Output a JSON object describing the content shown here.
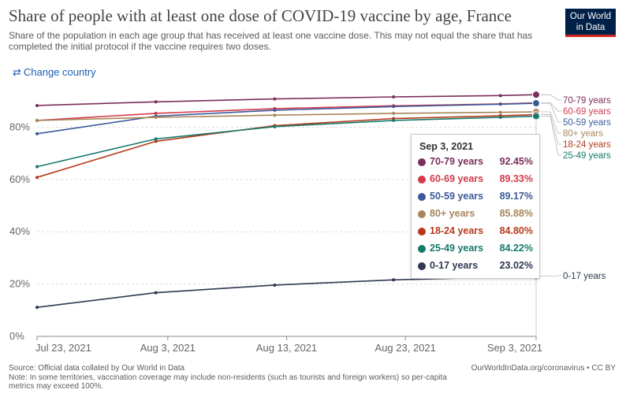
{
  "header": {
    "title": "Share of people with at least one dose of COVID-19 vaccine by age, France",
    "subtitle": "Share of the population in each age group that has received at least one vaccine dose. This may not equal the share that has completed the initial protocol if the vaccine requires two doses.",
    "logo_line1": "Our World",
    "logo_line2": "in Data"
  },
  "controls": {
    "change_country_icon": "swap-arrows-icon",
    "change_country_label": "Change country"
  },
  "colors": {
    "70-79 years": "#7a2e5a",
    "60-69 years": "#d23a4b",
    "50-59 years": "#3c5a9a",
    "80+ years": "#a8855a",
    "18-24 years": "#b53a1b",
    "25-49 years": "#167a6b",
    "0-17 years": "#2e3850",
    "grid": "#dddddd",
    "axis": "#888888",
    "accent_link": "#1a5fb4",
    "logo_bg": "#002147",
    "logo_bar": "#ce261e"
  },
  "chart_data": {
    "type": "line",
    "title": "Share of people with at least one dose of COVID-19 vaccine by age, France",
    "xlabel": "",
    "ylabel": "",
    "x_range": [
      "2021-07-23",
      "2021-09-03"
    ],
    "x_ticks": [
      {
        "date": "2021-07-23",
        "label": "Jul 23, 2021"
      },
      {
        "date": "2021-08-03",
        "label": "Aug 3, 2021"
      },
      {
        "date": "2021-08-13",
        "label": "Aug 13, 2021"
      },
      {
        "date": "2021-08-23",
        "label": "Aug 23, 2021"
      },
      {
        "date": "2021-09-03",
        "label": "Sep 3, 2021"
      }
    ],
    "ylim": [
      0,
      92.5
    ],
    "y_ticks": [
      0,
      20,
      40,
      60,
      80
    ],
    "y_tick_labels": [
      "0%",
      "20%",
      "40%",
      "60%",
      "80%"
    ],
    "grid": "horizontal dashed",
    "legend": "right end labels",
    "x": [
      "2021-07-23",
      "2021-08-02",
      "2021-08-12",
      "2021-08-22",
      "2021-08-31",
      "2021-09-03"
    ],
    "series": [
      {
        "name": "70-79 years",
        "values": [
          88.3,
          89.7,
          90.8,
          91.6,
          92.1,
          92.45
        ]
      },
      {
        "name": "60-69 years",
        "values": [
          82.6,
          85.3,
          87.1,
          88.2,
          88.9,
          89.33
        ]
      },
      {
        "name": "50-59 years",
        "values": [
          77.5,
          84.2,
          86.5,
          87.9,
          88.8,
          89.17
        ]
      },
      {
        "name": "80+ years",
        "values": [
          82.6,
          83.8,
          84.6,
          85.3,
          85.7,
          85.88
        ]
      },
      {
        "name": "18-24 years",
        "values": [
          60.8,
          74.6,
          80.6,
          83.3,
          84.4,
          84.8
        ]
      },
      {
        "name": "25-49 years",
        "values": [
          64.9,
          75.5,
          80.2,
          82.6,
          83.8,
          84.22
        ]
      },
      {
        "name": "0-17 years",
        "values": [
          11.1,
          16.7,
          19.6,
          21.6,
          22.7,
          23.02
        ]
      }
    ],
    "tooltip": {
      "date": "Sep 3, 2021",
      "rows": [
        {
          "name": "70-79 years",
          "value": "92.45%"
        },
        {
          "name": "60-69 years",
          "value": "89.33%"
        },
        {
          "name": "50-59 years",
          "value": "89.17%"
        },
        {
          "name": "80+ years",
          "value": "85.88%"
        },
        {
          "name": "18-24 years",
          "value": "84.80%"
        },
        {
          "name": "25-49 years",
          "value": "84.22%"
        },
        {
          "name": "0-17 years",
          "value": "23.02%"
        }
      ]
    }
  },
  "footer": {
    "source": "Source: Official data collated by Our World in Data",
    "note": "Note: In some territories, vaccination coverage may include non-residents (such as tourists and foreign workers) so per-capita metrics may exceed 100%.",
    "credit": "OurWorldInData.org/coronavirus • CC BY"
  }
}
